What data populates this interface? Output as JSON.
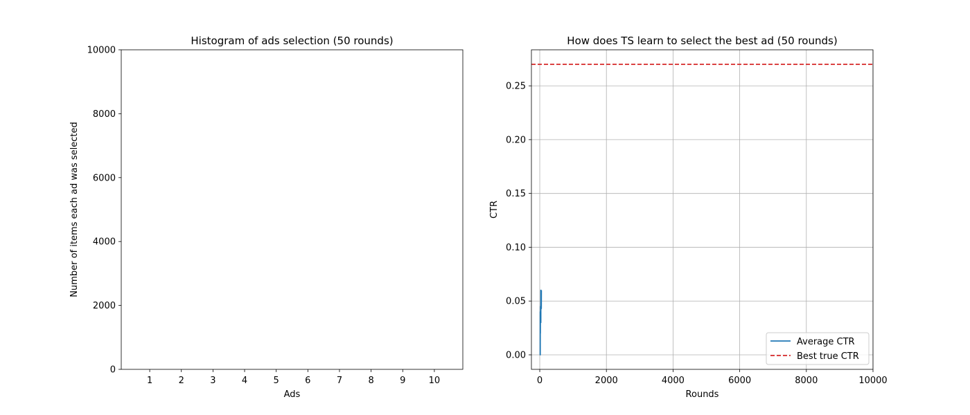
{
  "chart_data": [
    {
      "type": "bar",
      "title": "Histogram of ads selection (50 rounds)",
      "xlabel": "Ads",
      "ylabel": "Number of items each ad was selected",
      "categories": [
        "1",
        "2",
        "3",
        "4",
        "5",
        "6",
        "7",
        "8",
        "9",
        "10"
      ],
      "values": [
        0,
        0,
        0,
        0,
        0,
        0,
        0,
        0,
        0,
        0
      ],
      "xlim": [
        0.1,
        10.9
      ],
      "ylim": [
        0,
        10000
      ],
      "yticks": [
        0,
        2000,
        4000,
        6000,
        8000,
        10000
      ],
      "ytick_labels": [
        "0",
        "2000",
        "4000",
        "6000",
        "8000",
        "10000"
      ],
      "grid": false
    },
    {
      "type": "line",
      "title": "How does TS learn to select the best ad (50 rounds)",
      "xlabel": "Rounds",
      "ylabel": "CTR",
      "xlim": [
        -250,
        10000
      ],
      "ylim": [
        -0.0135,
        0.2835
      ],
      "xticks": [
        0,
        2000,
        4000,
        6000,
        8000,
        10000
      ],
      "xtick_labels": [
        "0",
        "2000",
        "4000",
        "6000",
        "8000",
        "10000"
      ],
      "yticks": [
        0,
        0.05,
        0.1,
        0.15,
        0.2,
        0.25
      ],
      "ytick_labels": [
        "0.00",
        "0.05",
        "0.10",
        "0.15",
        "0.20",
        "0.25"
      ],
      "grid": true,
      "legend_position": "lower-right",
      "series": [
        {
          "name": "Average CTR",
          "color": "#1f77b4",
          "style": "solid",
          "x": [
            1,
            5,
            10,
            14,
            15,
            18,
            20,
            22,
            24,
            25,
            26,
            28,
            30,
            32,
            33,
            34,
            36,
            38,
            40,
            42,
            44,
            46,
            48,
            50
          ],
          "y": [
            0,
            0,
            0,
            0,
            0.04,
            0.02,
            0.04,
            0.03,
            0.045,
            0.04,
            0.038,
            0.04,
            0.035,
            0.03,
            0.06,
            0.058,
            0.055,
            0.052,
            0.05,
            0.048,
            0.045,
            0.043,
            0.06,
            0.06
          ]
        },
        {
          "name": "Best true CTR",
          "color": "#d62728",
          "style": "dashed",
          "y_constant": 0.27
        }
      ]
    }
  ]
}
